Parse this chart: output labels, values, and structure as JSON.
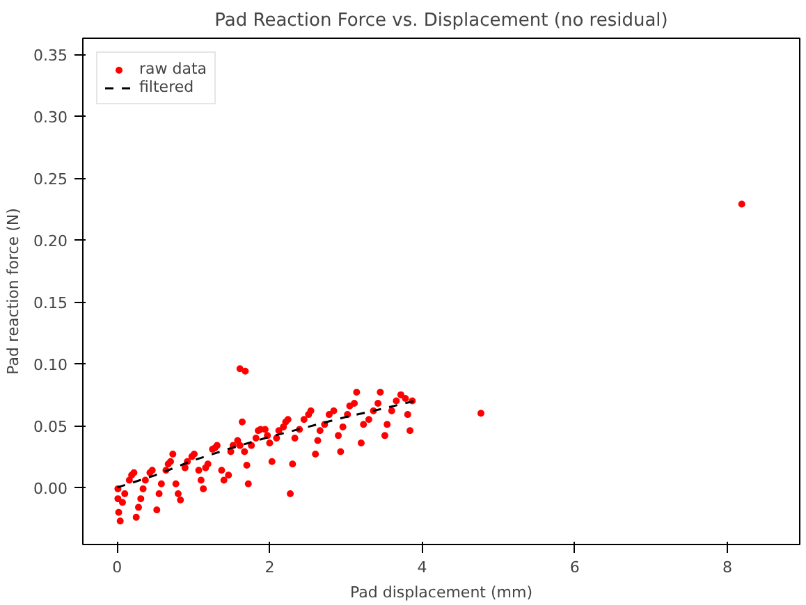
{
  "chart_data": {
    "type": "scatter",
    "title": "Pad Reaction Force vs. Displacement (no residual)",
    "xlabel": "Pad displacement (mm)",
    "ylabel": "Pad reaction force (N)",
    "xlim": [
      -0.45,
      8.95
    ],
    "ylim": [
      -0.046,
      0.363
    ],
    "xticks": [
      0,
      2,
      4,
      6,
      8
    ],
    "yticks": [
      {
        "value": 0,
        "label": "0.00"
      },
      {
        "value": 0.05,
        "label": "0.05"
      },
      {
        "value": 0.1,
        "label": "0.10"
      },
      {
        "value": 0.15,
        "label": "0.15"
      },
      {
        "value": 0.2,
        "label": "0.20"
      },
      {
        "value": 0.25,
        "label": "0.25"
      },
      {
        "value": 0.3,
        "label": "0.30"
      },
      {
        "value": 0.35,
        "label": "0.35"
      }
    ],
    "grid": false,
    "legend": "top left",
    "series": [
      {
        "name": "raw data",
        "marker": "circle",
        "color": "#ff0000",
        "x": [
          0.01,
          0.01,
          0.02,
          0.04,
          0.07,
          0.1,
          0.16,
          0.19,
          0.22,
          0.25,
          0.28,
          0.31,
          0.34,
          0.37,
          0.43,
          0.46,
          0.52,
          0.55,
          0.58,
          0.64,
          0.67,
          0.7,
          0.73,
          0.77,
          0.8,
          0.83,
          0.89,
          0.92,
          0.98,
          1.01,
          1.07,
          1.1,
          1.13,
          1.16,
          1.19,
          1.25,
          1.28,
          1.31,
          1.37,
          1.4,
          1.46,
          1.49,
          1.52,
          1.58,
          1.61,
          1.64,
          1.67,
          1.7,
          1.72,
          1.61,
          1.68,
          1.76,
          1.82,
          1.85,
          1.88,
          1.94,
          1.97,
          2.0,
          2.03,
          2.09,
          2.12,
          2.18,
          2.21,
          2.24,
          2.27,
          2.3,
          2.33,
          2.39,
          2.45,
          2.51,
          2.54,
          2.6,
          2.63,
          2.66,
          2.72,
          2.78,
          2.84,
          2.9,
          2.93,
          2.96,
          3.02,
          3.05,
          3.11,
          3.14,
          3.2,
          3.23,
          3.3,
          3.36,
          3.42,
          3.45,
          3.51,
          3.54,
          3.6,
          3.66,
          3.72,
          3.78,
          3.81,
          3.84,
          3.87,
          4.77,
          8.19
        ],
        "values": [
          -0.001,
          -0.009,
          -0.02,
          -0.027,
          -0.012,
          -0.005,
          0.006,
          0.01,
          0.012,
          -0.024,
          -0.016,
          -0.009,
          -0.001,
          0.006,
          0.012,
          0.014,
          -0.018,
          -0.005,
          0.003,
          0.014,
          0.019,
          0.021,
          0.027,
          0.003,
          -0.005,
          -0.01,
          0.016,
          0.021,
          0.025,
          0.027,
          0.014,
          0.006,
          -0.001,
          0.016,
          0.019,
          0.031,
          0.032,
          0.034,
          0.014,
          0.006,
          0.01,
          0.029,
          0.034,
          0.038,
          0.034,
          0.053,
          0.029,
          0.018,
          0.003,
          0.096,
          0.094,
          0.034,
          0.04,
          0.046,
          0.047,
          0.047,
          0.042,
          0.036,
          0.021,
          0.04,
          0.046,
          0.049,
          0.053,
          0.055,
          -0.005,
          0.019,
          0.04,
          0.047,
          0.055,
          0.059,
          0.062,
          0.027,
          0.038,
          0.046,
          0.051,
          0.059,
          0.062,
          0.042,
          0.029,
          0.049,
          0.059,
          0.066,
          0.068,
          0.077,
          0.036,
          0.051,
          0.055,
          0.062,
          0.068,
          0.077,
          0.042,
          0.051,
          0.062,
          0.07,
          0.075,
          0.072,
          0.059,
          0.046,
          0.07,
          0.06,
          0.229
        ]
      },
      {
        "name": "filtered",
        "type": "line",
        "line_style": "dashed",
        "color": "#000000",
        "x": [
          0,
          0.5,
          1,
          1.5,
          2,
          2.5,
          3,
          3.5,
          3.9
        ],
        "values": [
          0,
          0.01,
          0.022,
          0.032,
          0.041,
          0.049,
          0.057,
          0.064,
          0.07
        ]
      }
    ]
  }
}
